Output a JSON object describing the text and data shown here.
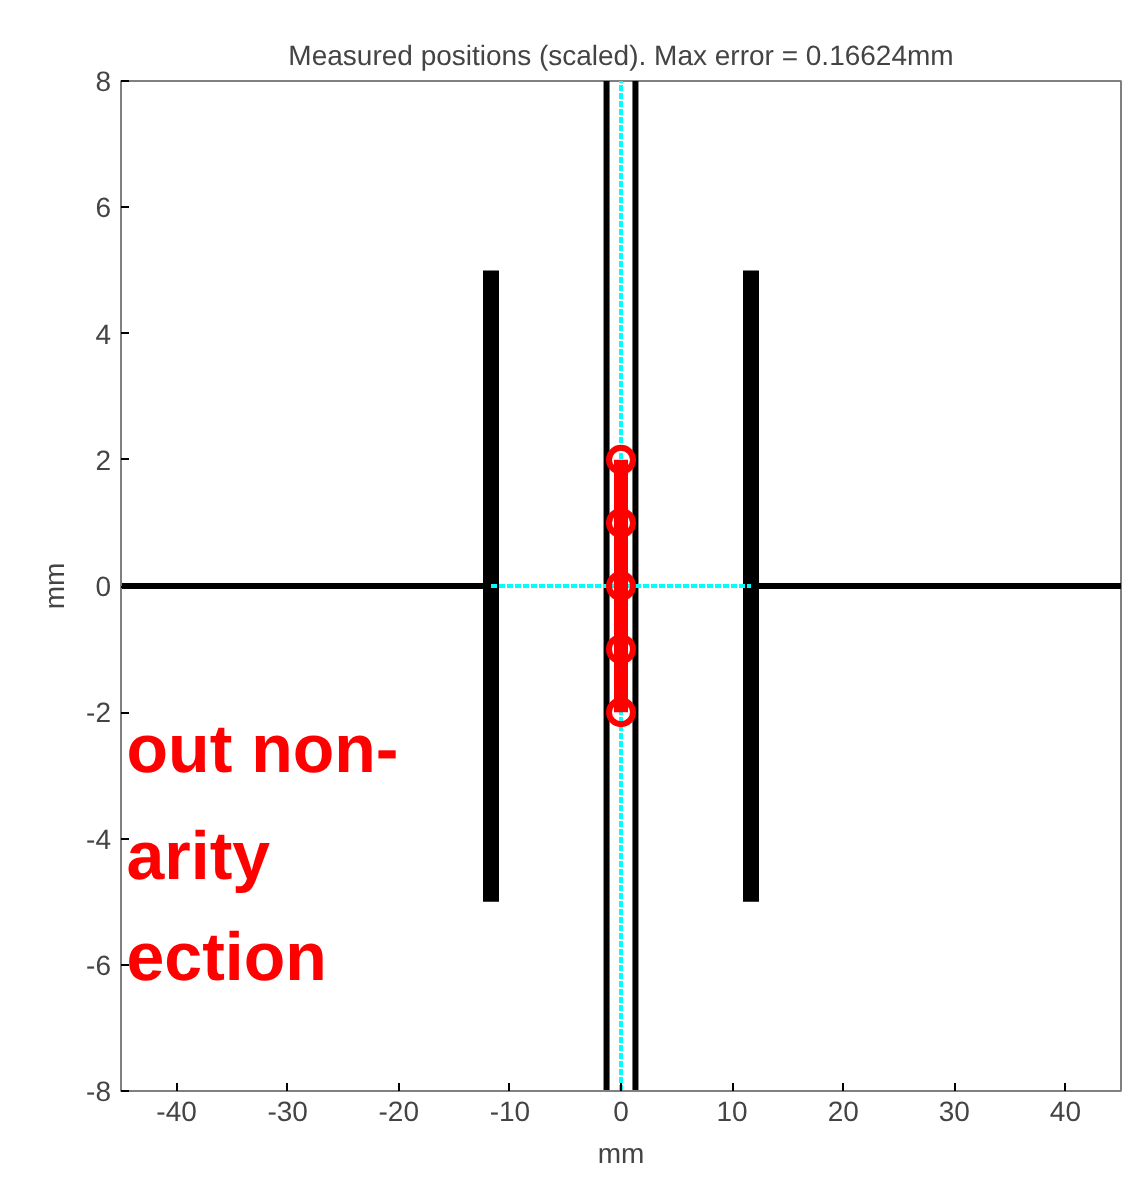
{
  "chart_data": {
    "type": "line",
    "title": "Measured positions (scaled). Max error = 0.16624mm",
    "xlabel": "mm",
    "ylabel": "mm",
    "xlim": [
      -45,
      45
    ],
    "ylim": [
      -8,
      8
    ],
    "xticks": [
      -40,
      -30,
      -20,
      -10,
      0,
      10,
      20,
      30,
      40
    ],
    "yticks": [
      -8,
      -6,
      -4,
      -2,
      0,
      2,
      4,
      6,
      8
    ],
    "grid": false,
    "annotations": [
      "out non-",
      "arity",
      "ection"
    ],
    "series": [
      {
        "color": "#00ffff",
        "line_style": "dashed",
        "x": [
          0,
          0
        ],
        "values": [
          -8,
          8
        ]
      },
      {
        "color": "#00ffff",
        "line_style": "dashed",
        "x": [
          -11.7,
          11.7
        ],
        "values": [
          0,
          0
        ]
      },
      {
        "color": "#000000",
        "line_style": "solid",
        "x": [
          -45,
          -11.7
        ],
        "values": [
          0,
          0
        ]
      },
      {
        "color": "#000000",
        "line_style": "solid",
        "x": [
          11.7,
          45
        ],
        "values": [
          0,
          0
        ]
      },
      {
        "color": "#000000",
        "line_style": "solid",
        "x": [
          -11.7,
          -11.7
        ],
        "values": [
          -5,
          5
        ]
      },
      {
        "color": "#000000",
        "line_style": "solid",
        "x": [
          11.7,
          11.7
        ],
        "values": [
          -5,
          5
        ]
      },
      {
        "color": "#000000",
        "line_style": "solid",
        "x": [
          -1.3,
          -1.3
        ],
        "values": [
          -8,
          8
        ]
      },
      {
        "color": "#000000",
        "line_style": "solid",
        "x": [
          1.3,
          1.3
        ],
        "values": [
          -8,
          8
        ]
      },
      {
        "color": "#ff0000",
        "line_style": "solid",
        "marker": "circle",
        "x": [
          0,
          0,
          0,
          0,
          0
        ],
        "values": [
          -2,
          -1,
          0,
          1,
          2
        ]
      }
    ]
  }
}
